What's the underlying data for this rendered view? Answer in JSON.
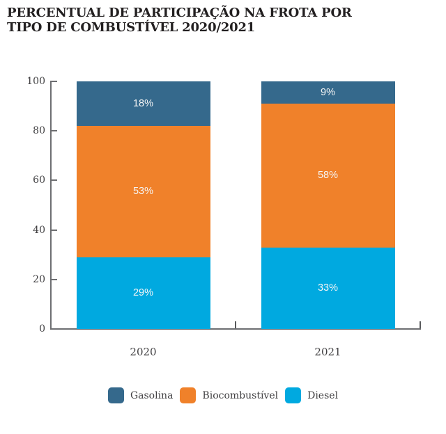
{
  "title": "PERCENTUAL DE PARTICIPAÇÃO NA FROTA POR\nTIPO DE COMBUSTÍVEL 2020/2021",
  "chart_data": {
    "type": "bar",
    "variant": "stacked-percentage",
    "title": "PERCENTUAL DE PARTICIPAÇÃO NA FROTA POR TIPO DE COMBUSTÍVEL 2020/2021",
    "categories": [
      "2020",
      "2021"
    ],
    "series": [
      {
        "name": "Diesel",
        "color": "#00a9e0",
        "values": [
          29,
          33
        ]
      },
      {
        "name": "Biocombustível",
        "color": "#f0812a",
        "values": [
          53,
          58
        ]
      },
      {
        "name": "Gasolina",
        "color": "#35698c",
        "values": [
          18,
          9
        ]
      }
    ],
    "value_suffix": "%",
    "ylim": [
      0,
      100
    ],
    "yticks": [
      0,
      20,
      40,
      60,
      80,
      100
    ],
    "grid": false,
    "legend": {
      "position": "bottom",
      "order": [
        "Gasolina",
        "Biocombustível",
        "Diesel"
      ]
    }
  },
  "styles": {
    "axis_color": "#6d6e71",
    "tick_color": "#58595b",
    "label_color": "#414042",
    "title_color": "#221f20",
    "bar_label_color": "#f5f5f5"
  }
}
